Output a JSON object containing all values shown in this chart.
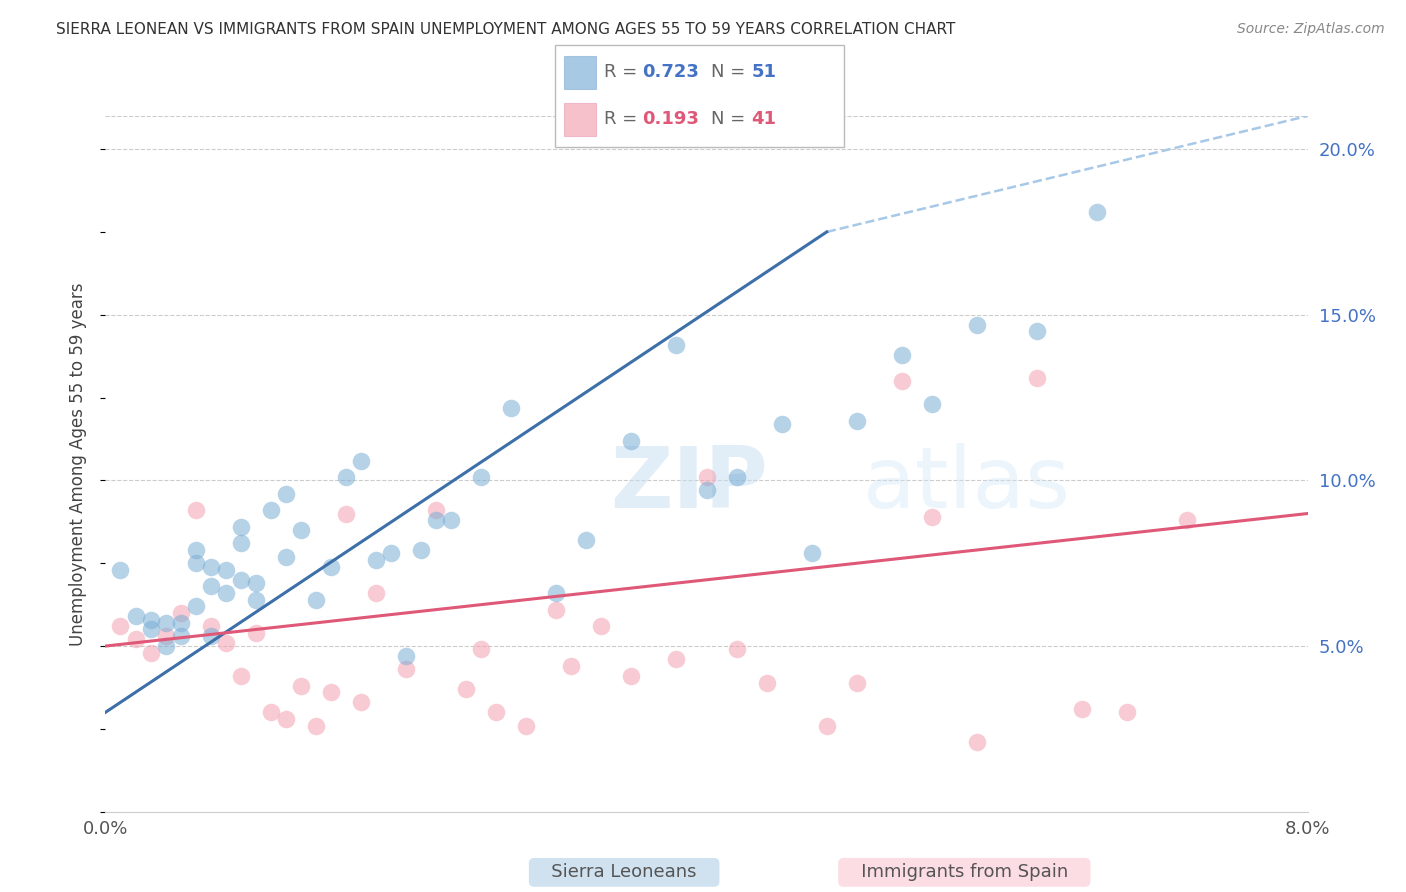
{
  "title": "SIERRA LEONEAN VS IMMIGRANTS FROM SPAIN UNEMPLOYMENT AMONG AGES 55 TO 59 YEARS CORRELATION CHART",
  "source": "Source: ZipAtlas.com",
  "ylabel": "Unemployment Among Ages 55 to 59 years",
  "xmin": 0.0,
  "xmax": 0.08,
  "ymin": 0.0,
  "ymax": 0.21,
  "yticks": [
    0.05,
    0.1,
    0.15,
    0.2
  ],
  "ytick_labels": [
    "5.0%",
    "10.0%",
    "15.0%",
    "20.0%"
  ],
  "legend_blue_r": "0.723",
  "legend_blue_n": "51",
  "legend_pink_r": "0.193",
  "legend_pink_n": "41",
  "legend_label_blue": "Sierra Leoneans",
  "legend_label_pink": "Immigrants from Spain",
  "blue_color": "#7aadd4",
  "blue_line_color": "#3d6fa8",
  "pink_color": "#f4a0b0",
  "pink_line_color": "#e05878",
  "dashed_line_color": "#a8c8e8",
  "watermark_zip": "ZIP",
  "watermark_atlas": "atlas",
  "blue_scatter_x": [
    0.001,
    0.002,
    0.003,
    0.003,
    0.004,
    0.004,
    0.005,
    0.005,
    0.006,
    0.006,
    0.006,
    0.007,
    0.007,
    0.007,
    0.008,
    0.008,
    0.009,
    0.009,
    0.009,
    0.01,
    0.01,
    0.011,
    0.012,
    0.012,
    0.013,
    0.014,
    0.015,
    0.016,
    0.017,
    0.018,
    0.019,
    0.02,
    0.021,
    0.022,
    0.023,
    0.025,
    0.027,
    0.03,
    0.032,
    0.035,
    0.038,
    0.04,
    0.042,
    0.045,
    0.047,
    0.05,
    0.053,
    0.055,
    0.058,
    0.062,
    0.066
  ],
  "blue_scatter_y": [
    0.073,
    0.059,
    0.055,
    0.058,
    0.05,
    0.057,
    0.053,
    0.057,
    0.062,
    0.075,
    0.079,
    0.053,
    0.068,
    0.074,
    0.066,
    0.073,
    0.07,
    0.081,
    0.086,
    0.064,
    0.069,
    0.091,
    0.077,
    0.096,
    0.085,
    0.064,
    0.074,
    0.101,
    0.106,
    0.076,
    0.078,
    0.047,
    0.079,
    0.088,
    0.088,
    0.101,
    0.122,
    0.066,
    0.082,
    0.112,
    0.141,
    0.097,
    0.101,
    0.117,
    0.078,
    0.118,
    0.138,
    0.123,
    0.147,
    0.145,
    0.181
  ],
  "pink_scatter_x": [
    0.001,
    0.002,
    0.003,
    0.004,
    0.005,
    0.006,
    0.007,
    0.008,
    0.009,
    0.01,
    0.011,
    0.012,
    0.013,
    0.014,
    0.015,
    0.016,
    0.017,
    0.018,
    0.02,
    0.022,
    0.024,
    0.025,
    0.026,
    0.028,
    0.03,
    0.031,
    0.033,
    0.035,
    0.038,
    0.04,
    0.042,
    0.044,
    0.048,
    0.05,
    0.053,
    0.055,
    0.058,
    0.062,
    0.065,
    0.068,
    0.072
  ],
  "pink_scatter_y": [
    0.056,
    0.052,
    0.048,
    0.053,
    0.06,
    0.091,
    0.056,
    0.051,
    0.041,
    0.054,
    0.03,
    0.028,
    0.038,
    0.026,
    0.036,
    0.09,
    0.033,
    0.066,
    0.043,
    0.091,
    0.037,
    0.049,
    0.03,
    0.026,
    0.061,
    0.044,
    0.056,
    0.041,
    0.046,
    0.101,
    0.049,
    0.039,
    0.026,
    0.039,
    0.13,
    0.089,
    0.021,
    0.131,
    0.031,
    0.03,
    0.088
  ],
  "blue_line_x": [
    0.0,
    0.048
  ],
  "blue_line_y": [
    0.03,
    0.175
  ],
  "dashed_line_x": [
    0.048,
    0.08
  ],
  "dashed_line_y": [
    0.175,
    0.21
  ],
  "pink_line_x": [
    0.0,
    0.08
  ],
  "pink_line_y": [
    0.05,
    0.09
  ]
}
